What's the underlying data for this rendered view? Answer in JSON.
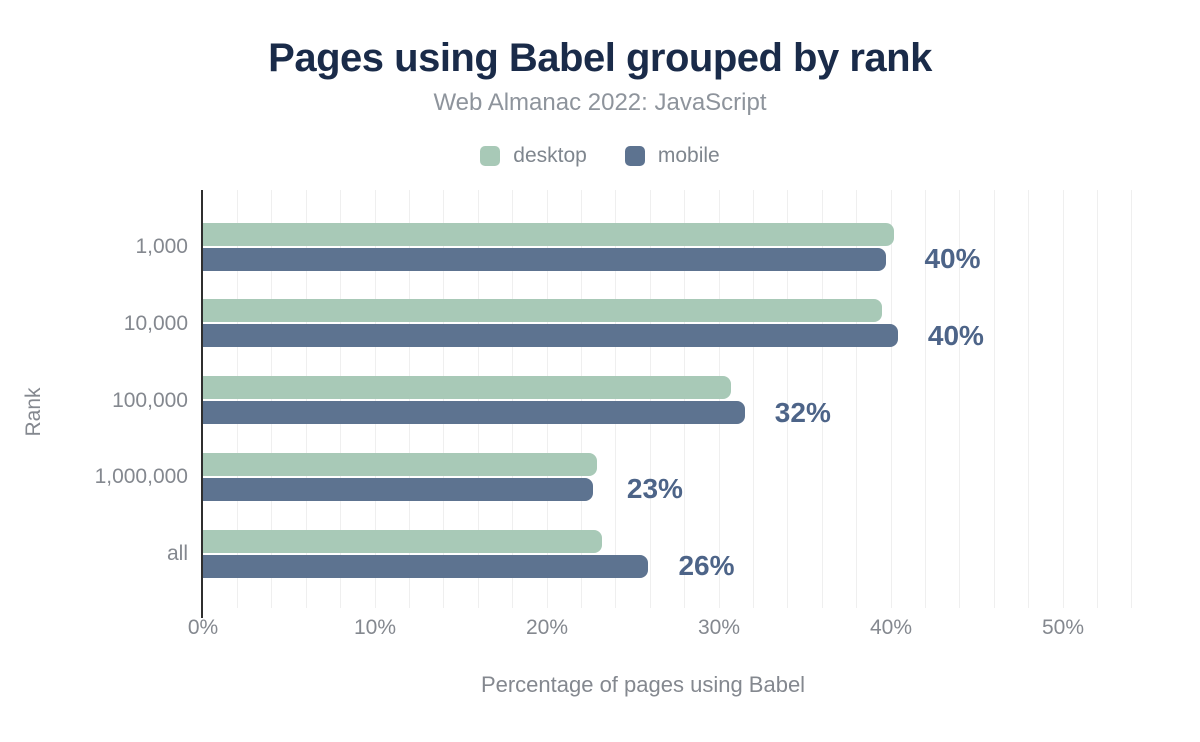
{
  "page": {
    "background": "#ffffff"
  },
  "chart_data": {
    "type": "bar",
    "orientation": "horizontal",
    "title": "Pages using Babel grouped by rank",
    "subtitle": "Web Almanac 2022: JavaScript",
    "xlabel": "Percentage of pages using Babel",
    "ylabel": "Rank",
    "categories": [
      "1,000",
      "10,000",
      "100,000",
      "1,000,000",
      "all"
    ],
    "series": [
      {
        "name": "desktop",
        "color": "#a8c9b7",
        "values": [
          40.2,
          39.5,
          30.7,
          22.9,
          23.2
        ]
      },
      {
        "name": "mobile",
        "color": "#5d7390",
        "values": [
          39.7,
          40.4,
          31.5,
          22.7,
          25.9
        ]
      }
    ],
    "bar_labels": [
      "40%",
      "40%",
      "32%",
      "23%",
      "26%"
    ],
    "bar_labels_follow_series": "mobile",
    "x_ticks": [
      {
        "label": "0%",
        "value": 0
      },
      {
        "label": "10%",
        "value": 10
      },
      {
        "label": "20%",
        "value": 20
      },
      {
        "label": "30%",
        "value": 30
      },
      {
        "label": "40%",
        "value": 40
      },
      {
        "label": "50%",
        "value": 50
      }
    ],
    "xlim": [
      0,
      54
    ],
    "grid": {
      "show": true,
      "interval_pct": 2,
      "color": "#efefef"
    },
    "legend_position": "top",
    "colors": {
      "title": "#1a2b49",
      "subtitle": "#8e949c",
      "legend_text": "#7f868e",
      "axis_text": "#84888f",
      "bar_label": "#4d6488",
      "axis_line": "#2f2f2f"
    }
  }
}
